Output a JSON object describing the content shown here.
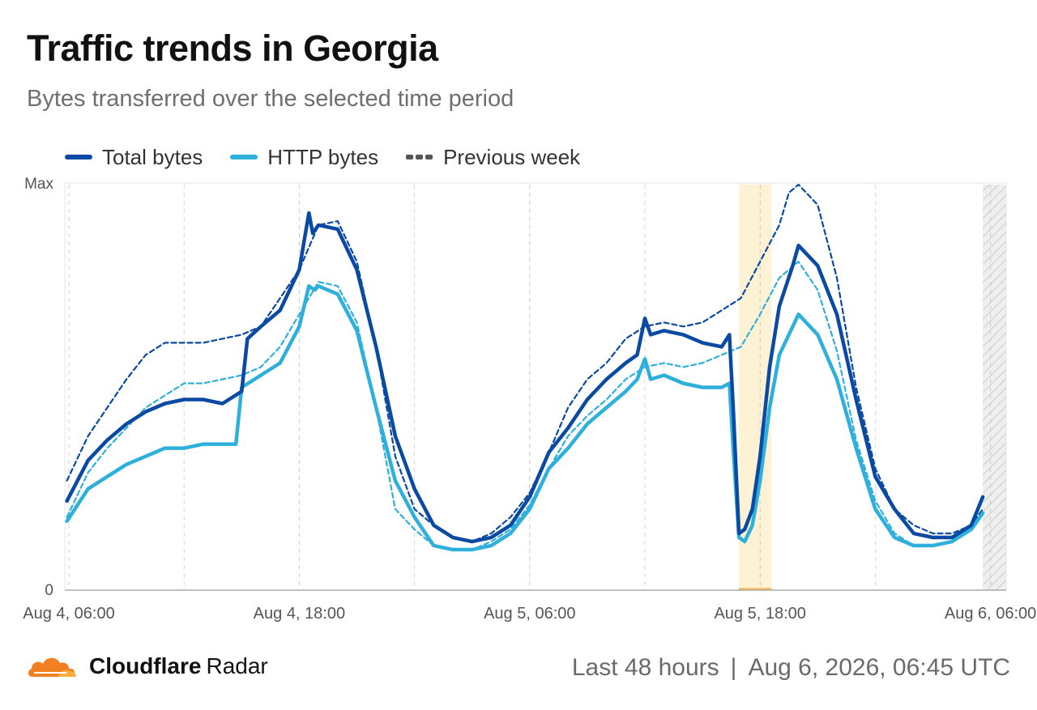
{
  "header": {
    "title": "Traffic trends in Georgia",
    "subtitle": "Bytes transferred over the selected time period"
  },
  "legend": {
    "total": "Total bytes",
    "http": "HTTP bytes",
    "previous": "Previous week"
  },
  "footer": {
    "brand": "Cloudflare",
    "product": "Radar",
    "range": "Last 48 hours",
    "separator": "|",
    "timestamp": "Aug 6, 2026, 06:45 UTC"
  },
  "colors": {
    "total": "#0b4aa2",
    "http": "#2fb0dc",
    "previous": "#555555",
    "highlight": "#fdf2d4",
    "brand": "#f38020"
  },
  "chart_data": {
    "type": "line",
    "x_unit": "hours since Aug 4, 06:00 UTC",
    "y_axis_labels": [
      "Max",
      "0"
    ],
    "ylim": [
      0,
      1
    ],
    "x_ticks": [
      {
        "h": 0,
        "label": "Aug 4, 06:00"
      },
      {
        "h": 12,
        "label": "Aug 4, 18:00"
      },
      {
        "h": 24,
        "label": "Aug 5, 06:00"
      },
      {
        "h": 36,
        "label": "Aug 5, 18:00"
      },
      {
        "h": 48,
        "label": "Aug 6, 06:00"
      }
    ],
    "minor_gridlines_h": [
      6,
      18,
      30,
      42
    ],
    "highlight_range_h": [
      34.9,
      36.6
    ],
    "incomplete_range_h": [
      47.6,
      49.1
    ],
    "series": [
      {
        "name": "Total bytes",
        "points": [
          [
            -0.1,
            0.22
          ],
          [
            1,
            0.32
          ],
          [
            2,
            0.37
          ],
          [
            3,
            0.41
          ],
          [
            4,
            0.44
          ],
          [
            5,
            0.46
          ],
          [
            6,
            0.47
          ],
          [
            7,
            0.47
          ],
          [
            8,
            0.46
          ],
          [
            9,
            0.49
          ],
          [
            9.3,
            0.62
          ],
          [
            10,
            0.65
          ],
          [
            11,
            0.69
          ],
          [
            12,
            0.79
          ],
          [
            12.5,
            0.93
          ],
          [
            12.7,
            0.88
          ],
          [
            13,
            0.9
          ],
          [
            14,
            0.89
          ],
          [
            15,
            0.79
          ],
          [
            16,
            0.6
          ],
          [
            17,
            0.38
          ],
          [
            18,
            0.25
          ],
          [
            19,
            0.16
          ],
          [
            20,
            0.13
          ],
          [
            21,
            0.12
          ],
          [
            22,
            0.13
          ],
          [
            23,
            0.16
          ],
          [
            24,
            0.23
          ],
          [
            25,
            0.34
          ],
          [
            26,
            0.4
          ],
          [
            27,
            0.47
          ],
          [
            28,
            0.52
          ],
          [
            29,
            0.56
          ],
          [
            29.6,
            0.58
          ],
          [
            30,
            0.67
          ],
          [
            30.3,
            0.63
          ],
          [
            31,
            0.64
          ],
          [
            32,
            0.63
          ],
          [
            33,
            0.61
          ],
          [
            34,
            0.6
          ],
          [
            34.4,
            0.63
          ],
          [
            34.6,
            0.45
          ],
          [
            34.9,
            0.14
          ],
          [
            35.2,
            0.15
          ],
          [
            35.6,
            0.2
          ],
          [
            36,
            0.33
          ],
          [
            36.5,
            0.55
          ],
          [
            37,
            0.7
          ],
          [
            37.7,
            0.8
          ],
          [
            38,
            0.85
          ],
          [
            39,
            0.8
          ],
          [
            40,
            0.68
          ],
          [
            41,
            0.47
          ],
          [
            42,
            0.28
          ],
          [
            43,
            0.2
          ],
          [
            44,
            0.14
          ],
          [
            45,
            0.13
          ],
          [
            46,
            0.13
          ],
          [
            47,
            0.16
          ],
          [
            47.6,
            0.23
          ]
        ]
      },
      {
        "name": "HTTP bytes",
        "points": [
          [
            -0.1,
            0.17
          ],
          [
            1,
            0.25
          ],
          [
            2,
            0.28
          ],
          [
            3,
            0.31
          ],
          [
            4,
            0.33
          ],
          [
            5,
            0.35
          ],
          [
            6,
            0.35
          ],
          [
            7,
            0.36
          ],
          [
            8,
            0.36
          ],
          [
            8.7,
            0.36
          ],
          [
            9,
            0.5
          ],
          [
            10,
            0.53
          ],
          [
            11,
            0.56
          ],
          [
            12,
            0.65
          ],
          [
            12.5,
            0.75
          ],
          [
            12.8,
            0.74
          ],
          [
            13,
            0.75
          ],
          [
            14,
            0.73
          ],
          [
            15,
            0.64
          ],
          [
            16,
            0.45
          ],
          [
            17,
            0.27
          ],
          [
            18,
            0.18
          ],
          [
            19,
            0.11
          ],
          [
            20,
            0.1
          ],
          [
            21,
            0.1
          ],
          [
            22,
            0.11
          ],
          [
            23,
            0.14
          ],
          [
            24,
            0.2
          ],
          [
            25,
            0.3
          ],
          [
            26,
            0.35
          ],
          [
            27,
            0.41
          ],
          [
            28,
            0.45
          ],
          [
            29,
            0.49
          ],
          [
            29.6,
            0.52
          ],
          [
            30,
            0.57
          ],
          [
            30.3,
            0.52
          ],
          [
            31,
            0.53
          ],
          [
            32,
            0.51
          ],
          [
            33,
            0.5
          ],
          [
            34,
            0.5
          ],
          [
            34.4,
            0.51
          ],
          [
            34.6,
            0.35
          ],
          [
            34.9,
            0.13
          ],
          [
            35.2,
            0.12
          ],
          [
            35.6,
            0.16
          ],
          [
            36,
            0.27
          ],
          [
            36.5,
            0.45
          ],
          [
            37,
            0.58
          ],
          [
            37.7,
            0.65
          ],
          [
            38,
            0.68
          ],
          [
            39,
            0.63
          ],
          [
            40,
            0.52
          ],
          [
            41,
            0.35
          ],
          [
            42,
            0.2
          ],
          [
            43,
            0.13
          ],
          [
            44,
            0.11
          ],
          [
            45,
            0.11
          ],
          [
            46,
            0.12
          ],
          [
            47,
            0.15
          ],
          [
            47.6,
            0.19
          ]
        ]
      },
      {
        "name": "Previous week",
        "points": [
          [
            -0.1,
            0.27
          ],
          [
            1,
            0.38
          ],
          [
            2,
            0.45
          ],
          [
            3,
            0.52
          ],
          [
            4,
            0.58
          ],
          [
            5,
            0.61
          ],
          [
            6,
            0.61
          ],
          [
            7,
            0.61
          ],
          [
            8,
            0.62
          ],
          [
            9,
            0.63
          ],
          [
            10,
            0.65
          ],
          [
            11,
            0.72
          ],
          [
            12,
            0.79
          ],
          [
            13,
            0.9
          ],
          [
            14,
            0.91
          ],
          [
            15,
            0.81
          ],
          [
            16,
            0.6
          ],
          [
            17,
            0.33
          ],
          [
            18,
            0.2
          ],
          [
            19,
            0.16
          ],
          [
            20,
            0.13
          ],
          [
            21,
            0.12
          ],
          [
            22,
            0.14
          ],
          [
            23,
            0.18
          ],
          [
            24,
            0.24
          ],
          [
            25,
            0.34
          ],
          [
            26,
            0.45
          ],
          [
            27,
            0.52
          ],
          [
            28,
            0.56
          ],
          [
            29,
            0.62
          ],
          [
            30,
            0.65
          ],
          [
            31,
            0.66
          ],
          [
            32,
            0.65
          ],
          [
            33,
            0.66
          ],
          [
            34,
            0.69
          ],
          [
            35,
            0.72
          ],
          [
            36,
            0.81
          ],
          [
            37,
            0.9
          ],
          [
            37.5,
            0.98
          ],
          [
            38,
            1.0
          ],
          [
            39,
            0.95
          ],
          [
            40,
            0.77
          ],
          [
            41,
            0.5
          ],
          [
            42,
            0.3
          ],
          [
            43,
            0.2
          ],
          [
            44,
            0.16
          ],
          [
            45,
            0.14
          ],
          [
            46,
            0.14
          ],
          [
            47,
            0.16
          ],
          [
            47.6,
            0.2
          ]
        ]
      },
      {
        "name": "Previous week (HTTP)",
        "points": [
          [
            -0.1,
            0.18
          ],
          [
            1,
            0.29
          ],
          [
            2,
            0.35
          ],
          [
            3,
            0.4
          ],
          [
            4,
            0.45
          ],
          [
            5,
            0.48
          ],
          [
            6,
            0.51
          ],
          [
            7,
            0.51
          ],
          [
            8,
            0.52
          ],
          [
            9,
            0.53
          ],
          [
            10,
            0.55
          ],
          [
            11,
            0.6
          ],
          [
            12,
            0.68
          ],
          [
            13,
            0.76
          ],
          [
            14,
            0.75
          ],
          [
            15,
            0.66
          ],
          [
            16,
            0.45
          ],
          [
            17,
            0.2
          ],
          [
            18,
            0.15
          ],
          [
            19,
            0.11
          ],
          [
            20,
            0.1
          ],
          [
            21,
            0.1
          ],
          [
            22,
            0.12
          ],
          [
            23,
            0.15
          ],
          [
            24,
            0.21
          ],
          [
            25,
            0.3
          ],
          [
            26,
            0.38
          ],
          [
            27,
            0.43
          ],
          [
            28,
            0.47
          ],
          [
            29,
            0.52
          ],
          [
            30,
            0.55
          ],
          [
            31,
            0.56
          ],
          [
            32,
            0.55
          ],
          [
            33,
            0.56
          ],
          [
            34,
            0.58
          ],
          [
            35,
            0.6
          ],
          [
            36,
            0.68
          ],
          [
            37,
            0.77
          ],
          [
            38,
            0.81
          ],
          [
            39,
            0.74
          ],
          [
            40,
            0.59
          ],
          [
            41,
            0.37
          ],
          [
            42,
            0.22
          ],
          [
            43,
            0.14
          ],
          [
            44,
            0.11
          ],
          [
            45,
            0.11
          ],
          [
            46,
            0.12
          ],
          [
            47,
            0.15
          ],
          [
            47.6,
            0.19
          ]
        ]
      }
    ]
  }
}
